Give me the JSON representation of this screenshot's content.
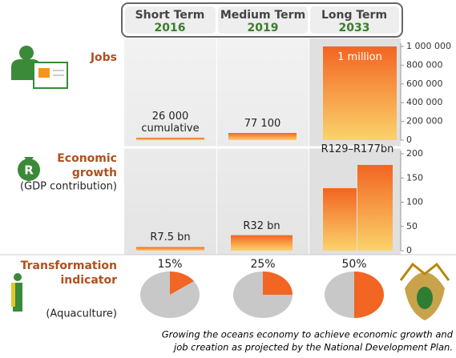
{
  "header": {
    "columns": [
      {
        "term": "Short Term",
        "year": "2016"
      },
      {
        "term": "Medium Term",
        "year": "2019"
      },
      {
        "term": "Long Term",
        "year": "2033"
      }
    ]
  },
  "chart_data": [
    {
      "type": "bar",
      "title": "Jobs",
      "values": [
        26000,
        77100,
        1000000
      ],
      "value_labels": [
        "26 000 cumulative",
        "77 100",
        "1 million"
      ],
      "ylim": [
        0,
        1000000
      ],
      "yticks": [
        0,
        {
          "value": 200000,
          "label": "200 000"
        },
        {
          "value": 400000,
          "label": "400 000"
        },
        {
          "value": 600000,
          "label": "600 000"
        },
        {
          "value": 800000,
          "label": "800 000"
        },
        {
          "value": 1000000,
          "label": "1 000 000"
        }
      ]
    },
    {
      "type": "bar",
      "title": "Economic growth",
      "subtitle": "(GDP contribution)",
      "values": [
        7.5,
        32,
        129,
        177
      ],
      "value_labels": [
        "R7.5 bn",
        "R32 bn",
        "R129–R177bn",
        null
      ],
      "ylim": [
        0,
        200
      ],
      "yticks": [
        0,
        50,
        100,
        150,
        200
      ]
    },
    {
      "type": "pie",
      "title": "Transformation indicator",
      "subtitle": "(Aquaculture)",
      "values": [
        15,
        25,
        50
      ],
      "value_labels": [
        "15%",
        "25%",
        "50%"
      ]
    }
  ],
  "caption": [
    "Growing the oceans economy to achieve economic growth and",
    "job creation as projected by the National Development Plan."
  ]
}
